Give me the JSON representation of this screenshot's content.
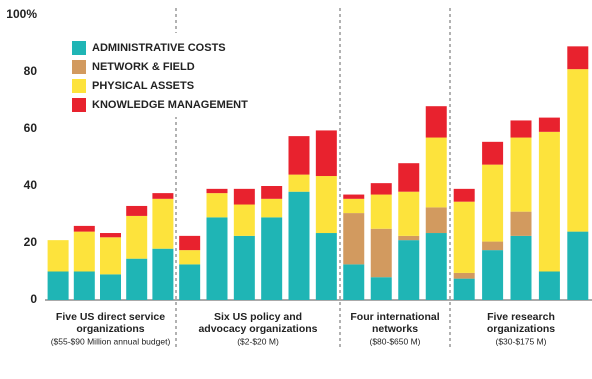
{
  "chart_data": {
    "type": "bar",
    "stacked": true,
    "ylim": [
      0,
      100
    ],
    "yticks": [
      0,
      20,
      40,
      60,
      80,
      {
        "value": 100,
        "label": "100%"
      }
    ],
    "series": [
      {
        "name": "ADMINISTRATIVE COSTS",
        "color": "#1fb5b5"
      },
      {
        "name": "NETWORK & FIELD",
        "color": "#d29a5f"
      },
      {
        "name": "PHYSICAL ASSETS",
        "color": "#fde33c"
      },
      {
        "name": "KNOWLEDGE MANAGEMENT",
        "color": "#e8222e"
      }
    ],
    "groups": [
      {
        "label": [
          "Five US direct service",
          "organizations"
        ],
        "note": "($55-$90 Million annual budget)",
        "values": [
          [
            10,
            10,
            9,
            14.5,
            18
          ],
          [
            0,
            0,
            0,
            0,
            0
          ],
          [
            11,
            14,
            13,
            15,
            17.5
          ],
          [
            0,
            2,
            1.5,
            3.5,
            2
          ]
        ]
      },
      {
        "label": [
          "Six US policy and",
          "advocacy organizations"
        ],
        "note": "($2-$20 M)",
        "values": [
          [
            12.5,
            29,
            22.5,
            29,
            38,
            23.5
          ],
          [
            0,
            0,
            0,
            0,
            0,
            0
          ],
          [
            5,
            8.5,
            11,
            6.5,
            6,
            20
          ],
          [
            5,
            1.5,
            5.5,
            4.5,
            13.5,
            16
          ]
        ]
      },
      {
        "label": [
          "Four international",
          "networks"
        ],
        "note": "($80-$650 M)",
        "values": [
          [
            12.5,
            8,
            21,
            23.5
          ],
          [
            18,
            17,
            1.5,
            9
          ],
          [
            5,
            12,
            15.5,
            24.5
          ],
          [
            1.5,
            4,
            10,
            11
          ]
        ]
      },
      {
        "label": [
          "Five research",
          "organizations"
        ],
        "note": "($30-$175 M)",
        "values": [
          [
            7.5,
            17.5,
            22.5,
            10,
            24
          ],
          [
            2,
            3,
            8.5,
            0,
            0
          ],
          [
            25,
            27,
            26,
            49,
            57
          ],
          [
            4.5,
            8,
            6,
            5,
            8
          ]
        ]
      }
    ]
  }
}
